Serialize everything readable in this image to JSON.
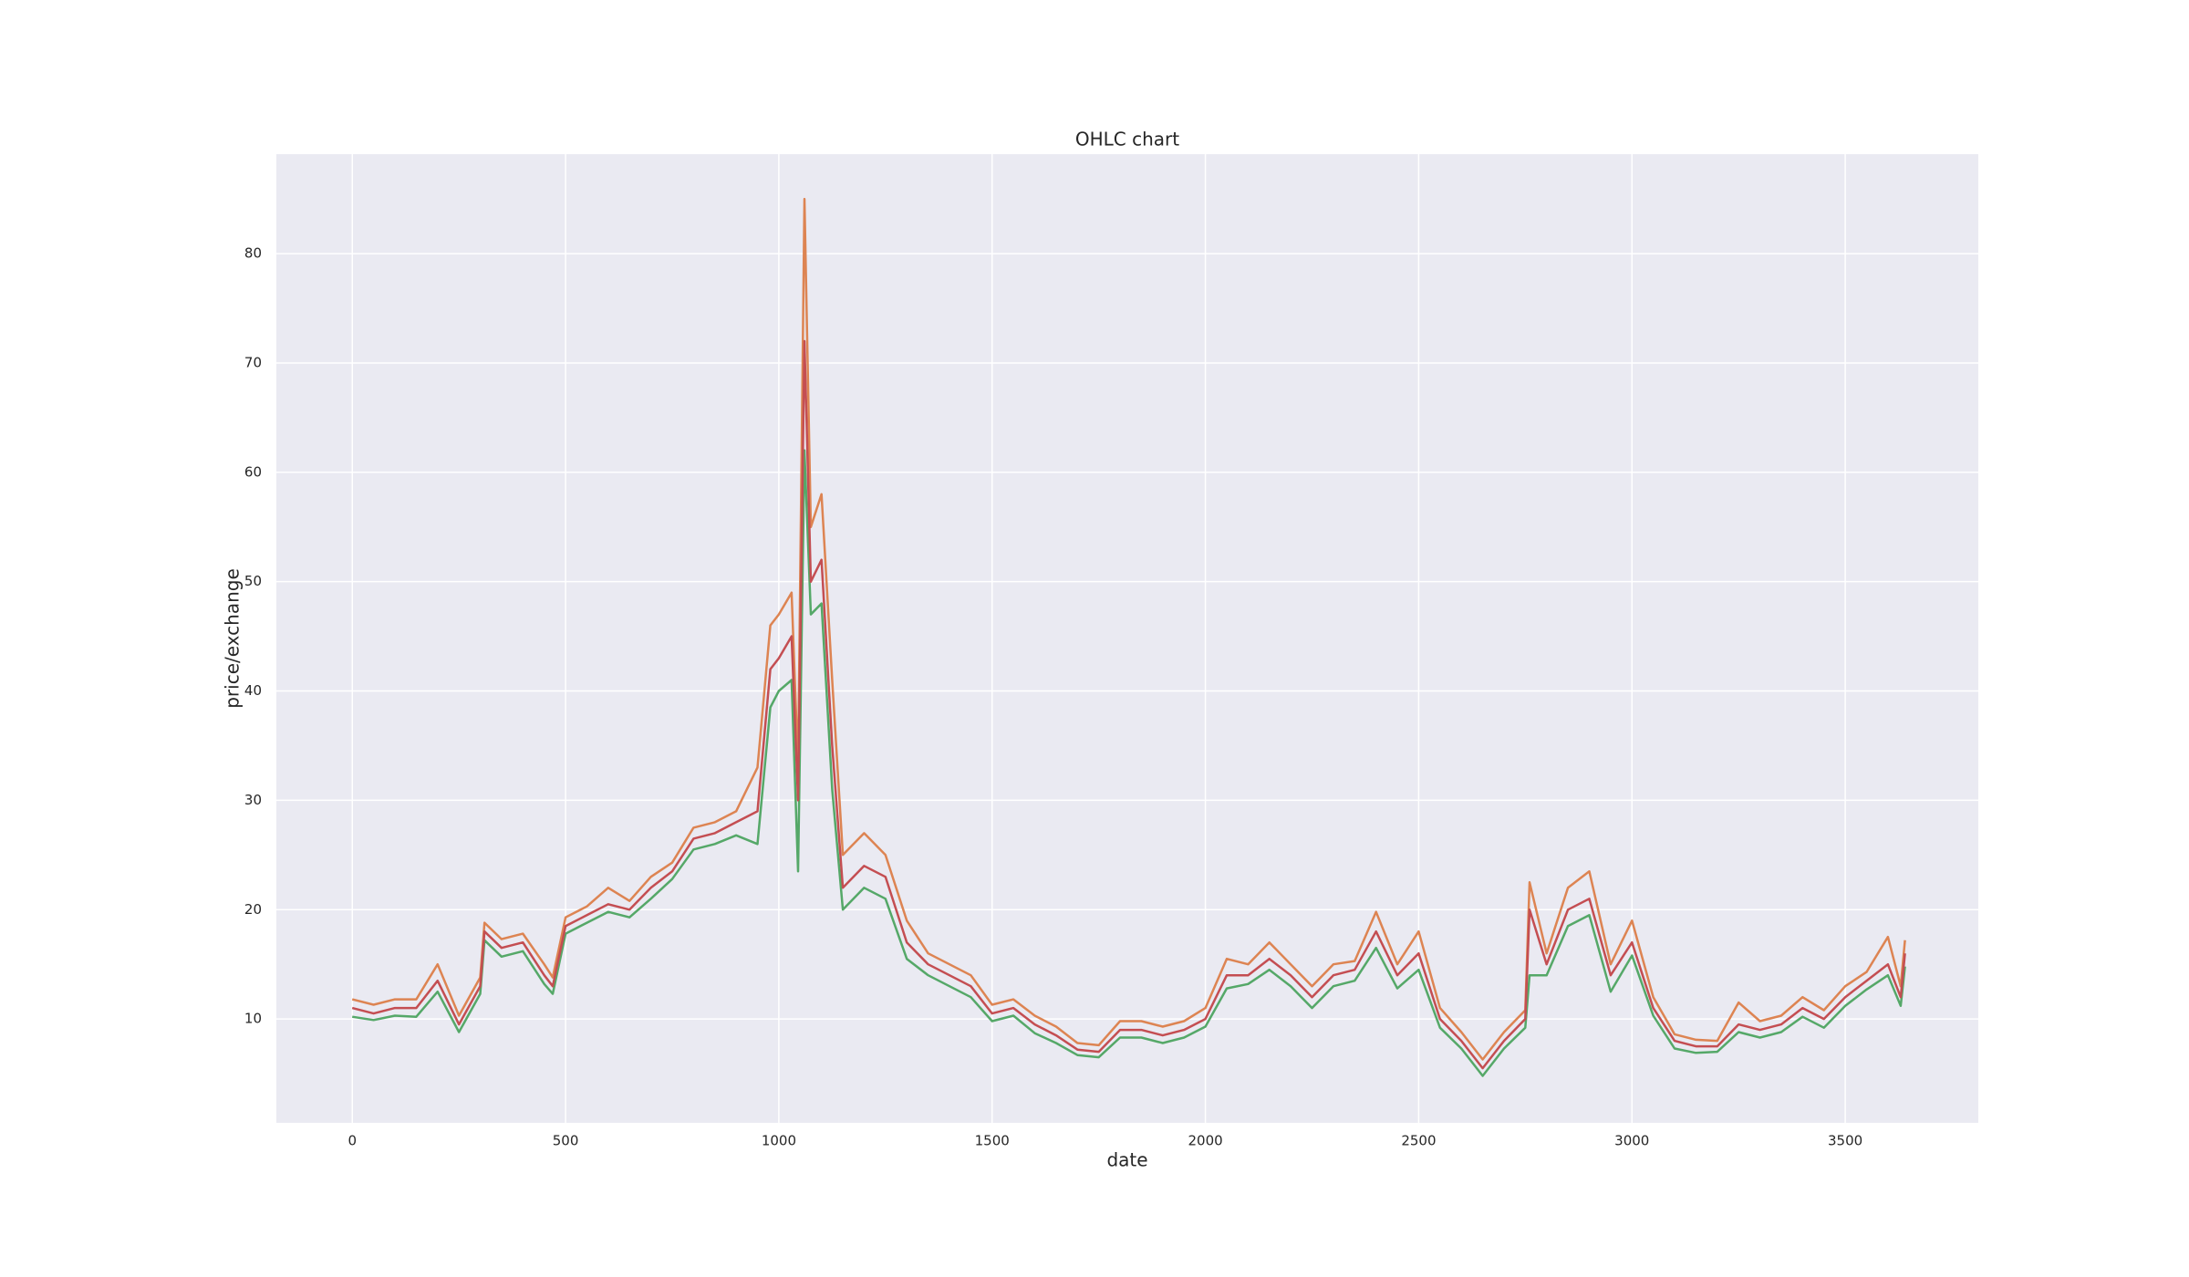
{
  "chart_data": {
    "type": "line",
    "title": "OHLC chart",
    "x_label": "date",
    "y_label": "price/exchange",
    "x": [
      0,
      50,
      100,
      150,
      200,
      250,
      300,
      310,
      350,
      400,
      450,
      470,
      500,
      550,
      600,
      650,
      700,
      750,
      800,
      850,
      900,
      950,
      980,
      1000,
      1030,
      1045,
      1060,
      1075,
      1100,
      1125,
      1150,
      1200,
      1250,
      1300,
      1350,
      1400,
      1450,
      1500,
      1550,
      1600,
      1650,
      1700,
      1750,
      1800,
      1850,
      1900,
      1950,
      2000,
      2050,
      2100,
      2150,
      2200,
      2250,
      2300,
      2350,
      2400,
      2450,
      2500,
      2550,
      2600,
      2650,
      2700,
      2750,
      2760,
      2800,
      2850,
      2900,
      2950,
      3000,
      3050,
      3100,
      3150,
      3200,
      3250,
      3300,
      3350,
      3400,
      3450,
      3500,
      3550,
      3600,
      3630,
      3640
    ],
    "series": [
      {
        "color": "#dd8452",
        "values": [
          11.8,
          11.3,
          11.8,
          11.8,
          15,
          10.3,
          13.8,
          18.8,
          17.3,
          17.8,
          15,
          13.8,
          19.3,
          20.3,
          22,
          20.8,
          23,
          24.3,
          27.5,
          28,
          29,
          33,
          46,
          47,
          49,
          33,
          85,
          55,
          58,
          41,
          25,
          27,
          25,
          19,
          16,
          15,
          14,
          11.3,
          11.8,
          10.3,
          9.3,
          7.8,
          7.6,
          9.8,
          9.8,
          9.3,
          9.8,
          11,
          15.5,
          15,
          17,
          15,
          13,
          15,
          15.3,
          19.8,
          15,
          18,
          11,
          8.8,
          6.3,
          8.8,
          10.8,
          22.5,
          16,
          22,
          23.5,
          15,
          19,
          12,
          8.6,
          8.1,
          8,
          11.5,
          9.8,
          10.3,
          12,
          10.8,
          13,
          14.3,
          17.5,
          13,
          17.2
        ]
      },
      {
        "color": "#55a868",
        "values": [
          10.2,
          9.9,
          10.3,
          10.2,
          12.5,
          8.8,
          12.3,
          17.2,
          15.7,
          16.2,
          13.2,
          12.3,
          17.8,
          18.8,
          19.8,
          19.3,
          21,
          22.8,
          25.5,
          26,
          26.8,
          26,
          38.5,
          40,
          41,
          23.5,
          62,
          47,
          48,
          31,
          20,
          22,
          21,
          15.5,
          14,
          13,
          12,
          9.8,
          10.3,
          8.7,
          7.8,
          6.7,
          6.5,
          8.3,
          8.3,
          7.8,
          8.3,
          9.3,
          12.8,
          13.2,
          14.5,
          13,
          11,
          13,
          13.5,
          16.5,
          12.8,
          14.5,
          9.2,
          7.3,
          4.8,
          7.3,
          9.2,
          14,
          14,
          18.5,
          19.5,
          12.5,
          15.8,
          10.3,
          7.3,
          6.9,
          7,
          8.8,
          8.3,
          8.8,
          10.2,
          9.2,
          11.2,
          12.7,
          14,
          11.2,
          14.8
        ]
      },
      {
        "color": "#c44e52",
        "values": [
          11,
          10.5,
          11,
          11,
          13.5,
          9.5,
          13,
          18,
          16.5,
          17,
          14,
          13,
          18.5,
          19.5,
          20.5,
          20,
          22,
          23.5,
          26.5,
          27,
          28,
          29,
          42,
          43,
          45,
          30,
          72,
          50,
          52,
          35,
          22,
          24,
          23,
          17,
          15,
          14,
          13,
          10.5,
          11,
          9.5,
          8.5,
          7.2,
          7,
          9,
          9,
          8.5,
          9,
          10,
          14,
          14,
          15.5,
          14,
          12,
          14,
          14.5,
          18,
          14,
          16,
          10,
          8,
          5.5,
          8,
          10,
          20,
          15,
          20,
          21,
          14,
          17,
          11,
          8,
          7.5,
          7.5,
          9.5,
          9,
          9.5,
          11,
          10,
          12,
          13.5,
          15,
          12,
          16
        ]
      }
    ],
    "xlim": [
      -178,
      3812
    ],
    "ylim": [
      0.5,
      89.1
    ],
    "xticks": [
      0,
      500,
      1000,
      1500,
      2000,
      2500,
      3000,
      3500
    ],
    "yticks": [
      10,
      20,
      30,
      40,
      50,
      60,
      70,
      80
    ],
    "grid": true
  }
}
